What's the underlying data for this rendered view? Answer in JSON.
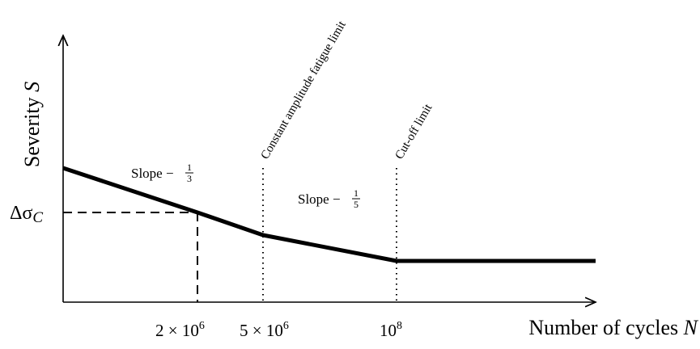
{
  "diagram": {
    "y_axis_title": "Severity",
    "y_axis_var": "S",
    "x_axis_title": "Number of cycles",
    "x_axis_var": "N",
    "delta_sigma": {
      "symbol": "Δσ",
      "subscript": "C"
    },
    "x_ticks": {
      "two_e6": {
        "coef": "2 × 10",
        "exp": "6"
      },
      "five_e6": {
        "coef": "5 × 10",
        "exp": "6"
      },
      "e8": {
        "coef": "10",
        "exp": "8"
      }
    },
    "slopes": {
      "first": {
        "text": "Slope −",
        "num": "1",
        "den": "3"
      },
      "second": {
        "text": "Slope −",
        "num": "1",
        "den": "5"
      }
    },
    "limits": {
      "fatigue": "Constant amplitude fatigue limit",
      "cutoff": "Cut-off limit"
    }
  }
}
